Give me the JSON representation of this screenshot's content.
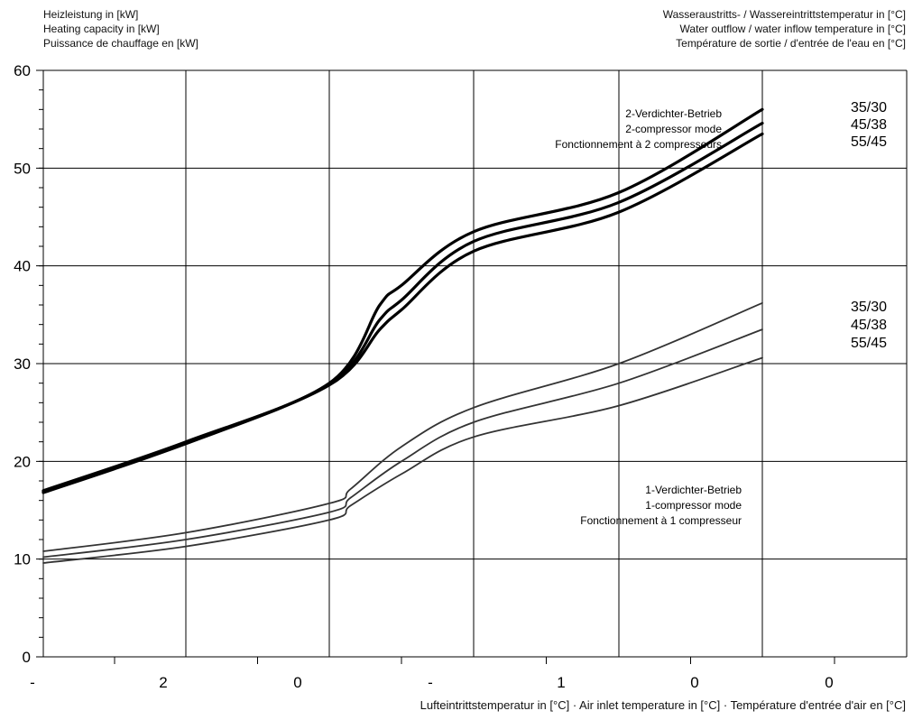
{
  "header_left": {
    "de": "Heizleistung in [kW]",
    "en": "Heating capacity in [kW]",
    "fr": "Puissance de chauffage en [kW]"
  },
  "header_right": {
    "de": "Wasseraustritts- / Wassereintrittstemperatur in [°C]",
    "en": "Water outflow / water inflow temperature in [°C]",
    "fr": "Température de sortie / d'entrée de l'eau en [°C]"
  },
  "x_axis_label": "Lufteintrittstemperatur in [°C] · Air inlet temperature in [°C] · Température d'entrée d'air en [°C]",
  "annotation_two": {
    "de": "2-Verdichter-Betrieb",
    "en": "2-compressor mode",
    "fr": "Fonctionnement à 2 compresseurs"
  },
  "annotation_one": {
    "de": "1-Verdichter-Betrieb",
    "en": "1-compressor mode",
    "fr": "Fonctionnement à 1 compresseur"
  },
  "chart_data": {
    "type": "line",
    "ylim": [
      0,
      60
    ],
    "y_ticks": [
      0,
      10,
      20,
      30,
      40,
      50,
      60
    ],
    "x_tick_labels": [
      "-",
      "2",
      "0",
      "-",
      "1",
      "0",
      "0"
    ],
    "grid": true,
    "series_groups": [
      {
        "group": "2-compressor",
        "series": [
          {
            "name": "35/30",
            "points": [
              [
                0,
                17.0
              ],
              [
                1,
                22.0
              ],
              [
                2,
                28.0
              ],
              [
                2.7,
                36.0
              ],
              [
                3,
                38.0
              ],
              [
                4,
                43.5
              ],
              [
                5,
                47.5
              ],
              [
                6,
                56.0
              ]
            ]
          },
          {
            "name": "45/38",
            "points": [
              [
                0,
                16.9
              ],
              [
                1,
                21.9
              ],
              [
                2,
                27.9
              ],
              [
                2.7,
                34.5
              ],
              [
                3,
                36.5
              ],
              [
                4,
                42.5
              ],
              [
                5,
                46.5
              ],
              [
                6,
                54.6
              ]
            ]
          },
          {
            "name": "55/45",
            "points": [
              [
                0,
                16.8
              ],
              [
                1,
                21.8
              ],
              [
                2,
                27.8
              ],
              [
                2.7,
                33.5
              ],
              [
                3,
                35.5
              ],
              [
                4,
                41.5
              ],
              [
                5,
                45.5
              ],
              [
                6,
                53.5
              ]
            ]
          }
        ]
      },
      {
        "group": "1-compressor",
        "series": [
          {
            "name": "35/30",
            "points": [
              [
                0,
                10.8
              ],
              [
                1,
                12.7
              ],
              [
                2,
                15.7
              ],
              [
                2.3,
                17.2
              ],
              [
                3,
                21.5
              ],
              [
                4,
                25.5
              ],
              [
                5,
                30.0
              ],
              [
                6,
                36.2
              ]
            ]
          },
          {
            "name": "45/38",
            "points": [
              [
                0,
                10.2
              ],
              [
                1,
                12.0
              ],
              [
                2,
                14.8
              ],
              [
                2.3,
                16.3
              ],
              [
                3,
                20.0
              ],
              [
                4,
                24.0
              ],
              [
                5,
                28.0
              ],
              [
                6,
                33.5
              ]
            ]
          },
          {
            "name": "55/45",
            "points": [
              [
                0,
                9.6
              ],
              [
                1,
                11.3
              ],
              [
                2,
                14.0
              ],
              [
                2.3,
                15.5
              ],
              [
                3,
                18.7
              ],
              [
                4,
                22.5
              ],
              [
                5,
                25.7
              ],
              [
                6,
                30.6
              ]
            ]
          }
        ]
      }
    ]
  }
}
